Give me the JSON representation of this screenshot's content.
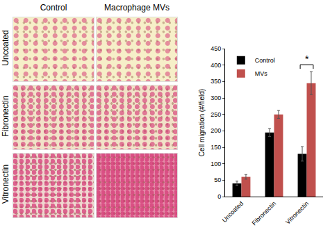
{
  "panels": {
    "columns": [
      "Control",
      "Macrophage MVs"
    ],
    "rows": [
      "Uncoated",
      "Fibronectin",
      "Vitronectin"
    ]
  },
  "chart_data": {
    "type": "bar",
    "categories": [
      "Uncoated",
      "Fibronectin",
      "Vitronectin"
    ],
    "series": [
      {
        "name": "Control",
        "color": "#000000",
        "values": [
          40,
          195,
          130
        ],
        "errors": [
          7,
          12,
          22
        ]
      },
      {
        "name": "MVs",
        "color": "#c0504d",
        "values": [
          60,
          250,
          345
        ],
        "errors": [
          7,
          12,
          35
        ]
      }
    ],
    "y_label": "Cell migration (#/field)",
    "ylim": [
      0,
      450
    ],
    "yticks": [
      0,
      50,
      100,
      150,
      200,
      250,
      300,
      350,
      400,
      450
    ],
    "grid": false,
    "legend": "upper left",
    "annotations": [
      {
        "text": "*",
        "category": "Vitronectin"
      }
    ]
  }
}
